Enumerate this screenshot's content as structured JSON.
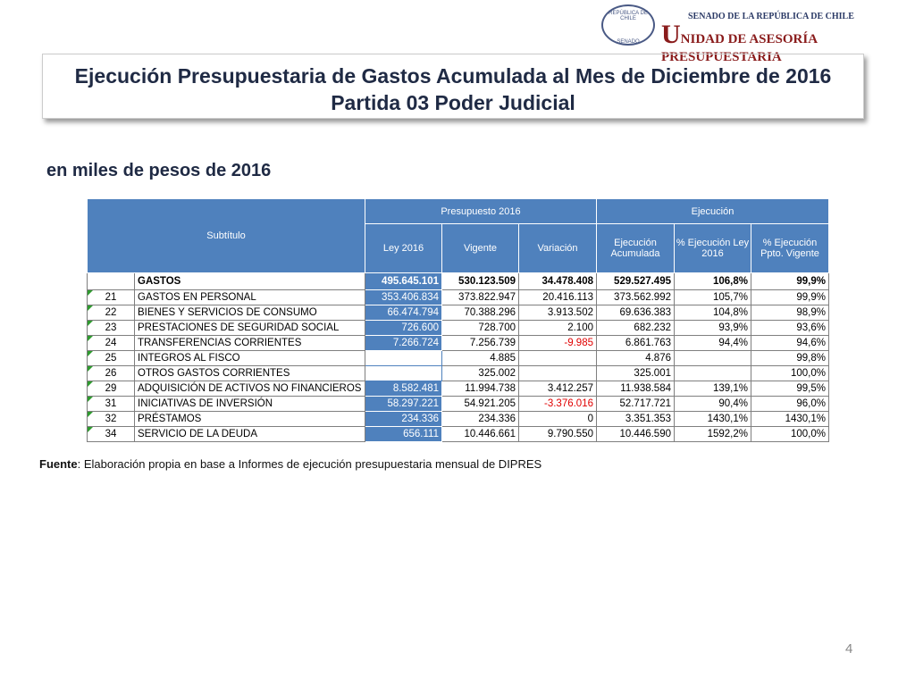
{
  "logo": {
    "seal_top": "REPÚBLICA DE CHILE",
    "seal_bottom": "SENADO",
    "line1": "SENADO DE LA REPÚBLICA DE CHILE",
    "line2": "UNIDAD DE ASESORÍA PRESUPUESTARIA"
  },
  "header": {
    "title1": "Ejecución Presupuestaria de Gastos Acumulada al Mes de Diciembre de 2016",
    "title2": "Partida 03 Poder Judicial"
  },
  "subtitle": "en miles de pesos de 2016",
  "table": {
    "head": {
      "subtitulo": "Subtítulo",
      "presupuesto": "Presupuesto 2016",
      "ejecucion": "Ejecución",
      "columns": [
        "Ley 2016",
        "Vigente",
        "Variación",
        "Ejecución Acumulada",
        "% Ejecución Ley 2016",
        "% Ejecución Ppto. Vigente"
      ]
    },
    "rows": [
      [
        null,
        "GASTOS",
        "495.645.101",
        "530.123.509",
        "34.478.408",
        "529.527.495",
        "106,8%",
        "99,9%"
      ],
      [
        "21",
        "GASTOS EN PERSONAL",
        "353.406.834",
        "373.822.947",
        "20.416.113",
        "373.562.992",
        "105,7%",
        "99,9%"
      ],
      [
        "22",
        "BIENES Y SERVICIOS DE CONSUMO",
        "66.474.794",
        "70.388.296",
        "3.913.502",
        "69.636.383",
        "104,8%",
        "98,9%"
      ],
      [
        "23",
        "PRESTACIONES DE SEGURIDAD SOCIAL",
        "726.600",
        "728.700",
        "2.100",
        "682.232",
        "93,9%",
        "93,6%"
      ],
      [
        "24",
        "TRANSFERENCIAS CORRIENTES",
        "7.266.724",
        "7.256.739",
        "-9.985",
        "6.861.763",
        "94,4%",
        "94,6%"
      ],
      [
        "25",
        "INTEGROS AL FISCO",
        null,
        "4.885",
        null,
        "4.876",
        null,
        "99,8%"
      ],
      [
        "26",
        "OTROS GASTOS CORRIENTES",
        null,
        "325.002",
        null,
        "325.001",
        null,
        "100,0%"
      ],
      [
        "29",
        "ADQUISICIÓN DE ACTIVOS NO FINANCIEROS",
        "8.582.481",
        "11.994.738",
        "3.412.257",
        "11.938.584",
        "139,1%",
        "99,5%"
      ],
      [
        "31",
        "INICIATIVAS DE INVERSIÓN",
        "58.297.221",
        "54.921.205",
        "-3.376.016",
        "52.717.721",
        "90,4%",
        "96,0%"
      ],
      [
        "32",
        "PRÉSTAMOS",
        "234.336",
        "234.336",
        "0",
        "3.351.353",
        "1430,1%",
        "1430,1%"
      ],
      [
        "34",
        "SERVICIO DE LA DEUDA",
        "656.111",
        "10.446.661",
        "9.790.550",
        "10.446.590",
        "1592,2%",
        "100,0%"
      ]
    ]
  },
  "footer": {
    "source_label": "Fuente",
    "source_text": ": Elaboración propia en base  a Informes de ejecución presupuestaria mensual de DIPRES"
  },
  "page_number": "4"
}
